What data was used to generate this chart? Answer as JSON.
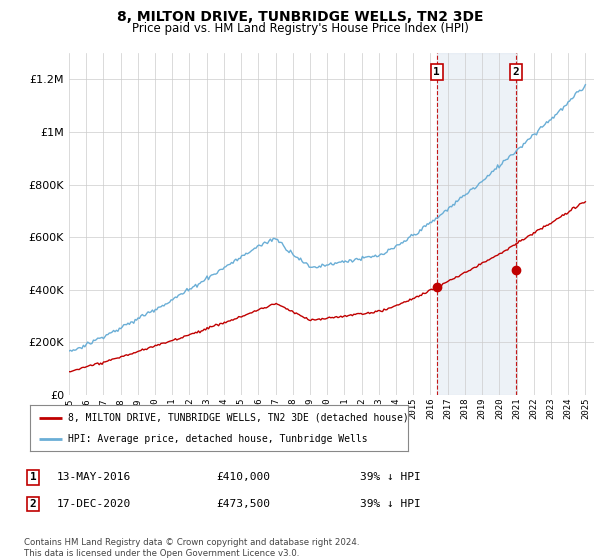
{
  "title": "8, MILTON DRIVE, TUNBRIDGE WELLS, TN2 3DE",
  "subtitle": "Price paid vs. HM Land Registry's House Price Index (HPI)",
  "ylim": [
    0,
    1300000
  ],
  "yticks": [
    0,
    200000,
    400000,
    600000,
    800000,
    1000000,
    1200000
  ],
  "hpi_color": "#6aaed6",
  "price_color": "#c00000",
  "sale1_year": 2016.36,
  "sale1_price": 410000,
  "sale2_year": 2020.96,
  "sale2_price": 473500,
  "sale1_date": "13-MAY-2016",
  "sale1_pct": "39% ↓ HPI",
  "sale2_date": "17-DEC-2020",
  "sale2_pct": "39% ↓ HPI",
  "legend_property": "8, MILTON DRIVE, TUNBRIDGE WELLS, TN2 3DE (detached house)",
  "legend_hpi": "HPI: Average price, detached house, Tunbridge Wells",
  "footer": "Contains HM Land Registry data © Crown copyright and database right 2024.\nThis data is licensed under the Open Government Licence v3.0.",
  "background_color": "#ffffff",
  "grid_color": "#cccccc",
  "shaded_region_color": "#dce6f1",
  "annotation_box_color": "#c00000"
}
